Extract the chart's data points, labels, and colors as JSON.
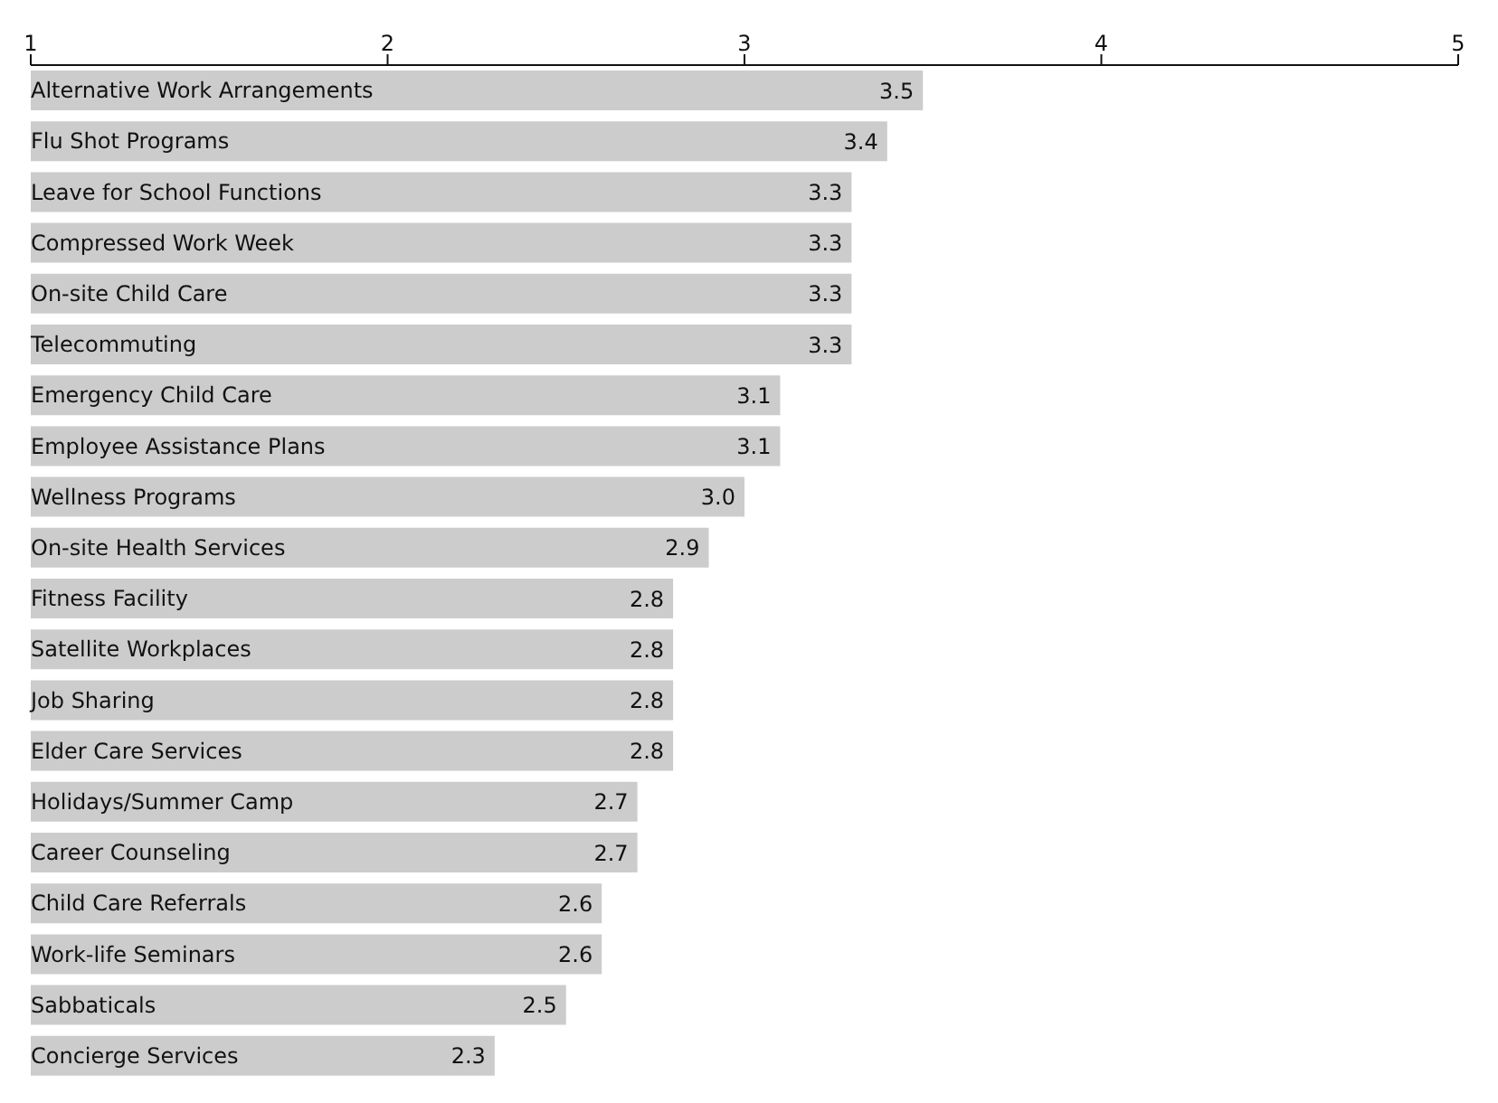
{
  "chart_data": {
    "type": "bar",
    "orientation": "horizontal",
    "categories": [
      "Alternative Work Arrangements",
      "Flu Shot Programs",
      "Leave for School Functions",
      "Compressed Work Week",
      "On-site Child Care",
      "Telecommuting",
      "Emergency Child Care",
      "Employee Assistance Plans",
      "Wellness Programs",
      "On-site Health Services",
      "Fitness Facility",
      "Satellite Workplaces",
      "Job Sharing",
      "Elder Care Services",
      "Holidays/Summer Camp",
      "Career Counseling",
      "Child Care Referrals",
      "Work-life Seminars",
      "Sabbaticals",
      "Concierge Services"
    ],
    "values": [
      3.5,
      3.4,
      3.3,
      3.3,
      3.3,
      3.3,
      3.1,
      3.1,
      3.0,
      2.9,
      2.8,
      2.8,
      2.8,
      2.8,
      2.7,
      2.7,
      2.6,
      2.6,
      2.5,
      2.3
    ],
    "value_labels": [
      "3.5",
      "3.4",
      "3.3",
      "3.3",
      "3.3",
      "3.3",
      "3.1",
      "3.1",
      "3.0",
      "2.9",
      "2.8",
      "2.8",
      "2.8",
      "2.8",
      "2.7",
      "2.7",
      "2.6",
      "2.6",
      "2.5",
      "2.3"
    ],
    "color": "#cccccc",
    "xlim": [
      1,
      5
    ],
    "xticks": [
      1,
      2,
      3,
      4,
      5
    ],
    "grid": false
  }
}
